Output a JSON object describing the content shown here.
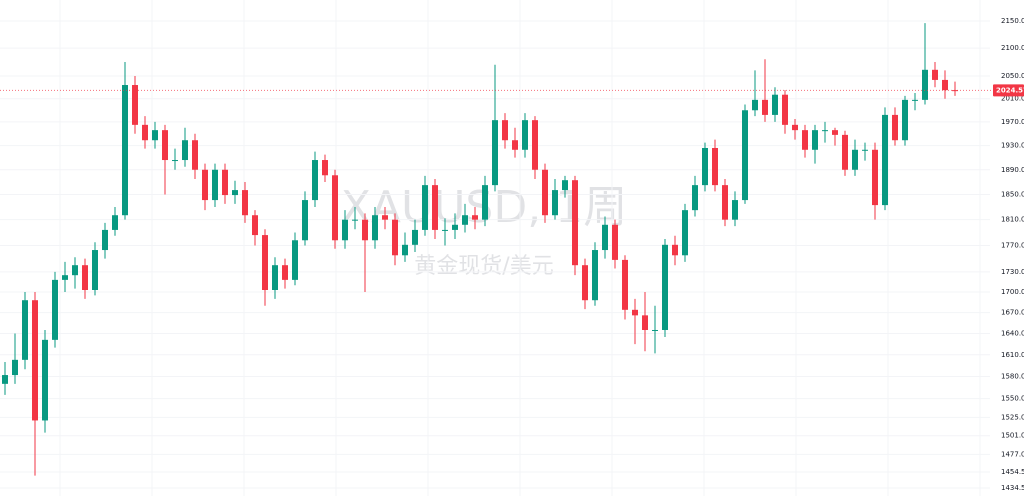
{
  "chart_data": {
    "type": "candlestick",
    "title": "XAUUSD, 1周",
    "subtitle": "黄金现货/美元",
    "up_color": "#089981",
    "down_color": "#f23645",
    "log_scale": true,
    "grid": true,
    "ylim": [
      1424.6,
      2189.5
    ],
    "yticks": [
      {
        "value": 2150,
        "label": "2150.00"
      },
      {
        "value": 2100,
        "label": "2100.00"
      },
      {
        "value": 2050,
        "label": "2050.00"
      },
      {
        "value": 2010,
        "label": "2010.00"
      },
      {
        "value": 1970,
        "label": "1970.00"
      },
      {
        "value": 1930,
        "label": "1930.00"
      },
      {
        "value": 1890,
        "label": "1890.00"
      },
      {
        "value": 1850,
        "label": "1850.00"
      },
      {
        "value": 1810,
        "label": "1810.00"
      },
      {
        "value": 1770,
        "label": "1770.00"
      },
      {
        "value": 1730,
        "label": "1730.00"
      },
      {
        "value": 1700,
        "label": "1700.00"
      },
      {
        "value": 1670,
        "label": "1670.00"
      },
      {
        "value": 1640,
        "label": "1640.00"
      },
      {
        "value": 1610,
        "label": "1610.00"
      },
      {
        "value": 1580,
        "label": "1580.00"
      },
      {
        "value": 1550,
        "label": "1550.00"
      },
      {
        "value": 1525,
        "label": "1525.00"
      },
      {
        "value": 1501,
        "label": "1501.00"
      },
      {
        "value": 1477,
        "label": "1477.00"
      },
      {
        "value": 1454.5,
        "label": "1454.50"
      },
      {
        "value": 1434.5,
        "label": "1434.50"
      }
    ],
    "last_price": 2024.57,
    "open": [
      1570,
      1582,
      1603,
      1688,
      1521,
      1631,
      1718,
      1725,
      1740,
      1703,
      1763,
      1794,
      1817,
      2034,
      1965,
      1939,
      1956,
      1906,
      1906,
      1939,
      1890,
      1841,
      1890,
      1849,
      1857,
      1817,
      1786,
      1703,
      1740,
      1718,
      1778,
      1841,
      1906,
      1881,
      1778,
      1810,
      1810,
      1778,
      1817,
      1810,
      1755,
      1771,
      1794,
      1865,
      1794,
      1794,
      1802,
      1817,
      1810,
      1865,
      1973,
      1939,
      1923,
      1973,
      1890,
      1817,
      1857,
      1873,
      1740,
      1688,
      1763,
      1802,
      1748,
      1674,
      1666,
      1645,
      1645,
      1771,
      1755,
      1825,
      1865,
      1926,
      1865,
      1810,
      1841,
      1990,
      2008,
      1982,
      2017,
      1965,
      1956,
      1923,
      1956,
      1956,
      1948,
      1890,
      1923,
      1923,
      1833,
      1982,
      1939,
      2008,
      2008,
      2061,
      2043,
      2025
    ],
    "high": [
      1600,
      1640,
      1700,
      1700,
      1645,
      1730,
      1745,
      1752,
      1750,
      1775,
      1805,
      1830,
      2075,
      2050,
      1980,
      1970,
      1965,
      1925,
      1960,
      1950,
      1900,
      1900,
      1900,
      1872,
      1870,
      1825,
      1795,
      1752,
      1750,
      1790,
      1855,
      1920,
      1915,
      1890,
      1825,
      1830,
      1820,
      1830,
      1830,
      1820,
      1790,
      1810,
      1880,
      1875,
      1812,
      1820,
      1835,
      1830,
      1880,
      2070,
      1985,
      1960,
      1985,
      1980,
      1900,
      1875,
      1880,
      1880,
      1750,
      1775,
      1815,
      1810,
      1755,
      1690,
      1700,
      1680,
      1780,
      1785,
      1835,
      1880,
      1935,
      1940,
      1875,
      1855,
      2000,
      2060,
      2080,
      2030,
      2025,
      1975,
      1965,
      1965,
      1970,
      1960,
      1955,
      1940,
      1935,
      1935,
      1995,
      1995,
      2015,
      2020,
      2146,
      2075,
      2060,
      2040
    ],
    "low": [
      1555,
      1570,
      1590,
      1450,
      1505,
      1620,
      1700,
      1705,
      1690,
      1695,
      1750,
      1785,
      1810,
      1950,
      1925,
      1925,
      1850,
      1890,
      1895,
      1875,
      1825,
      1830,
      1835,
      1835,
      1805,
      1770,
      1680,
      1690,
      1705,
      1710,
      1770,
      1830,
      1870,
      1765,
      1765,
      1795,
      1700,
      1765,
      1795,
      1740,
      1745,
      1760,
      1785,
      1780,
      1770,
      1780,
      1790,
      1795,
      1800,
      1855,
      1925,
      1910,
      1910,
      1875,
      1805,
      1810,
      1845,
      1725,
      1675,
      1680,
      1750,
      1735,
      1660,
      1625,
      1615,
      1612,
      1635,
      1740,
      1745,
      1815,
      1855,
      1855,
      1800,
      1800,
      1835,
      1980,
      1970,
      1970,
      1950,
      1940,
      1910,
      1900,
      1935,
      1930,
      1880,
      1880,
      1905,
      1810,
      1825,
      1930,
      1930,
      1990,
      2000,
      2030,
      2010,
      2015
    ],
    "close": [
      1582,
      1603,
      1688,
      1521,
      1631,
      1718,
      1725,
      1740,
      1703,
      1763,
      1794,
      1817,
      2034,
      1965,
      1939,
      1956,
      1906,
      1906,
      1939,
      1890,
      1841,
      1890,
      1849,
      1857,
      1817,
      1786,
      1703,
      1740,
      1718,
      1778,
      1841,
      1906,
      1881,
      1778,
      1810,
      1810,
      1778,
      1817,
      1810,
      1755,
      1771,
      1794,
      1865,
      1794,
      1794,
      1802,
      1817,
      1810,
      1865,
      1973,
      1939,
      1923,
      1973,
      1890,
      1817,
      1857,
      1873,
      1740,
      1688,
      1763,
      1802,
      1748,
      1674,
      1666,
      1645,
      1645,
      1771,
      1755,
      1825,
      1865,
      1926,
      1865,
      1810,
      1841,
      1990,
      2008,
      1982,
      2017,
      1965,
      1956,
      1923,
      1956,
      1956,
      1948,
      1890,
      1923,
      1923,
      1833,
      1982,
      1939,
      2008,
      2008,
      2061,
      2043,
      2025,
      2024.57
    ]
  }
}
